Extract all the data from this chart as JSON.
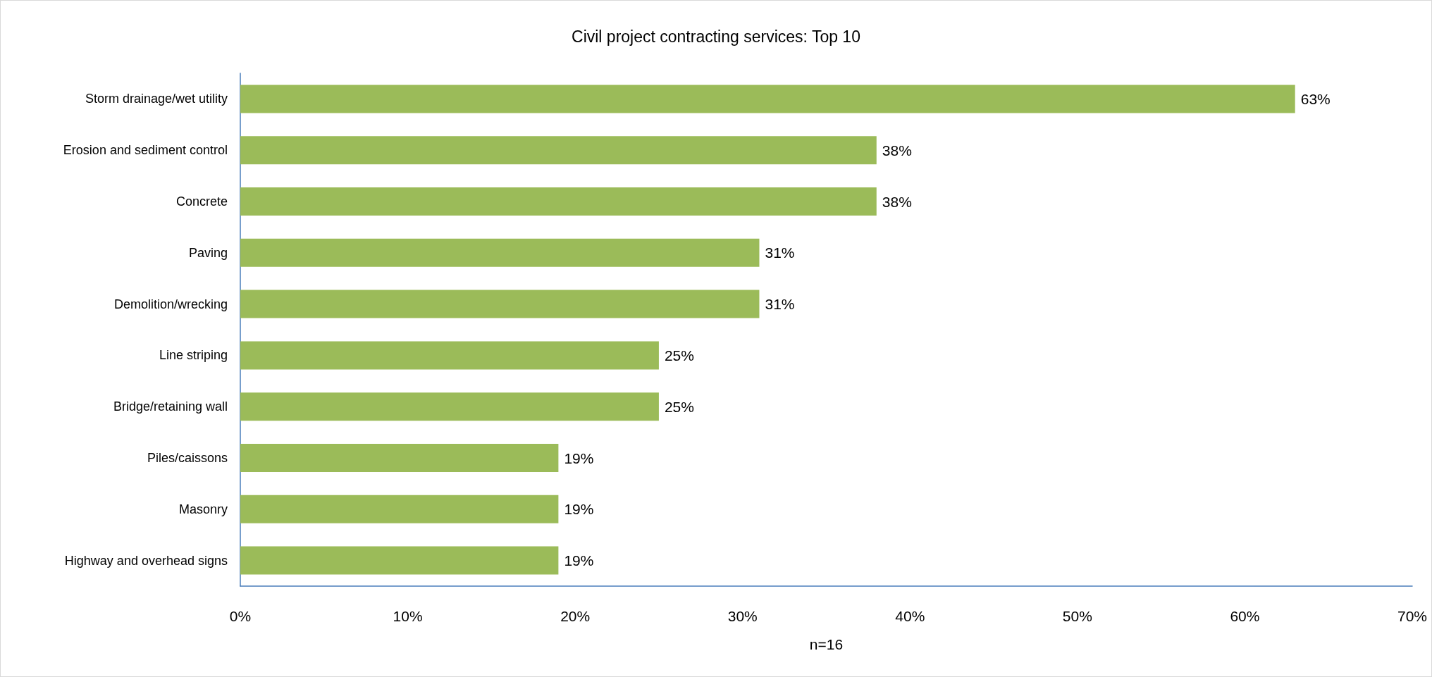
{
  "chart_data": {
    "type": "bar",
    "title": "Civil project contracting services: Top 10",
    "xlabel": "n=16",
    "orientation": "horizontal",
    "categories": [
      "Storm drainage/wet utility",
      "Erosion and sediment control",
      "Concrete",
      "Paving",
      "Demolition/wrecking",
      "Line striping",
      "Bridge/retaining wall",
      "Piles/caissons",
      "Masonry",
      "Highway and overhead signs"
    ],
    "values": [
      63,
      38,
      38,
      31,
      31,
      25,
      25,
      19,
      19,
      19
    ],
    "color": "#9bbb59",
    "xlim": [
      0,
      70
    ],
    "xticks": [
      {
        "value": 0,
        "label": "0%"
      },
      {
        "value": 10,
        "label": "10%"
      },
      {
        "value": 20,
        "label": "20%"
      },
      {
        "value": 30,
        "label": "30%"
      },
      {
        "value": 40,
        "label": "40%"
      },
      {
        "value": 50,
        "label": "50%"
      },
      {
        "value": 60,
        "label": "60%"
      },
      {
        "value": 70,
        "label": "70%"
      }
    ],
    "value_labels": [
      "63%",
      "38%",
      "38%",
      "31%",
      "31%",
      "25%",
      "25%",
      "19%",
      "19%",
      "19%"
    ],
    "grid": false
  }
}
